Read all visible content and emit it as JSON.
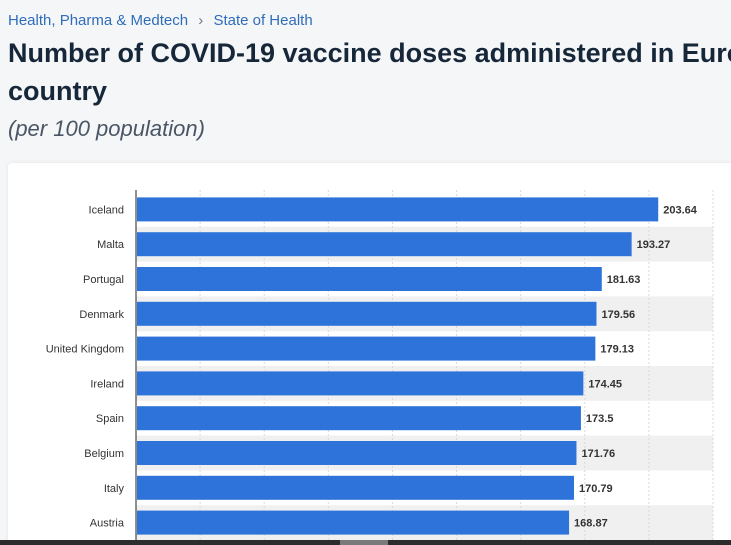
{
  "breadcrumb": {
    "category": "Health, Pharma & Medtech",
    "separator": "›",
    "topic": "State of Health"
  },
  "title_line1": "Number of COVID-19 vaccine doses administered in Euro",
  "title_line2": "country",
  "subtitle": "(per 100 population)",
  "colors": {
    "bar": "#2d73d9",
    "row_band": "#f0f0f0",
    "grid": "#d9d9d9",
    "axis": "#222222",
    "label": "#333333"
  },
  "chart_data": {
    "type": "bar",
    "orientation": "horizontal",
    "title": "Number of COVID-19 vaccine doses administered in Euro country",
    "subtitle": "(per 100 population)",
    "categories": [
      "Iceland",
      "Malta",
      "Portugal",
      "Denmark",
      "United Kingdom",
      "Ireland",
      "Spain",
      "Belgium",
      "Italy",
      "Austria"
    ],
    "values": [
      203.64,
      193.27,
      181.63,
      179.56,
      179.13,
      174.45,
      173.5,
      171.76,
      170.79,
      168.87
    ],
    "value_labels": [
      "203.64",
      "193.27",
      "181.63",
      "179.56",
      "179.13",
      "174.45",
      "173.5",
      "171.76",
      "170.79",
      "168.87"
    ],
    "xlim": [
      0,
      225
    ],
    "grid": true,
    "xlabel": "",
    "ylabel": ""
  }
}
